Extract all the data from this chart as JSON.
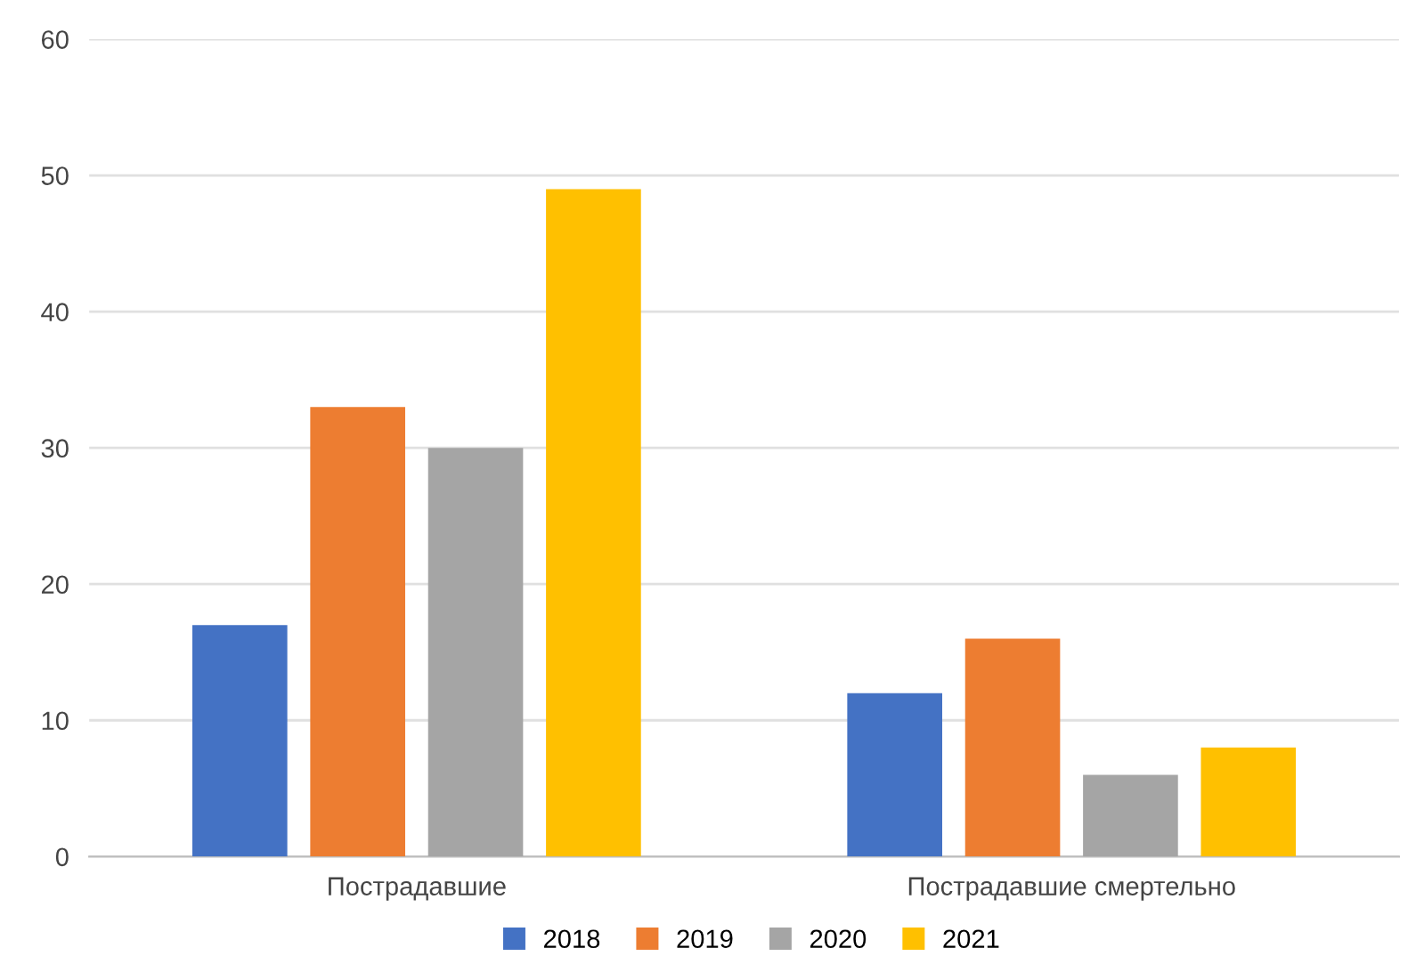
{
  "chart_data": {
    "type": "bar",
    "categories": [
      "Пострадавшие",
      "Пострадавшие смертельно"
    ],
    "series": [
      {
        "name": "2018",
        "color": "#4472c4",
        "values": [
          17,
          12
        ]
      },
      {
        "name": "2019",
        "color": "#ed7d31",
        "values": [
          33,
          16
        ]
      },
      {
        "name": "2020",
        "color": "#a5a5a5",
        "values": [
          30,
          6
        ]
      },
      {
        "name": "2021",
        "color": "#ffc000",
        "values": [
          49,
          8
        ]
      }
    ],
    "ylim": [
      0,
      60
    ],
    "yticks": [
      0,
      10,
      20,
      30,
      40,
      50,
      60
    ],
    "grid": "y",
    "legend": "bottom",
    "marker": "square"
  }
}
